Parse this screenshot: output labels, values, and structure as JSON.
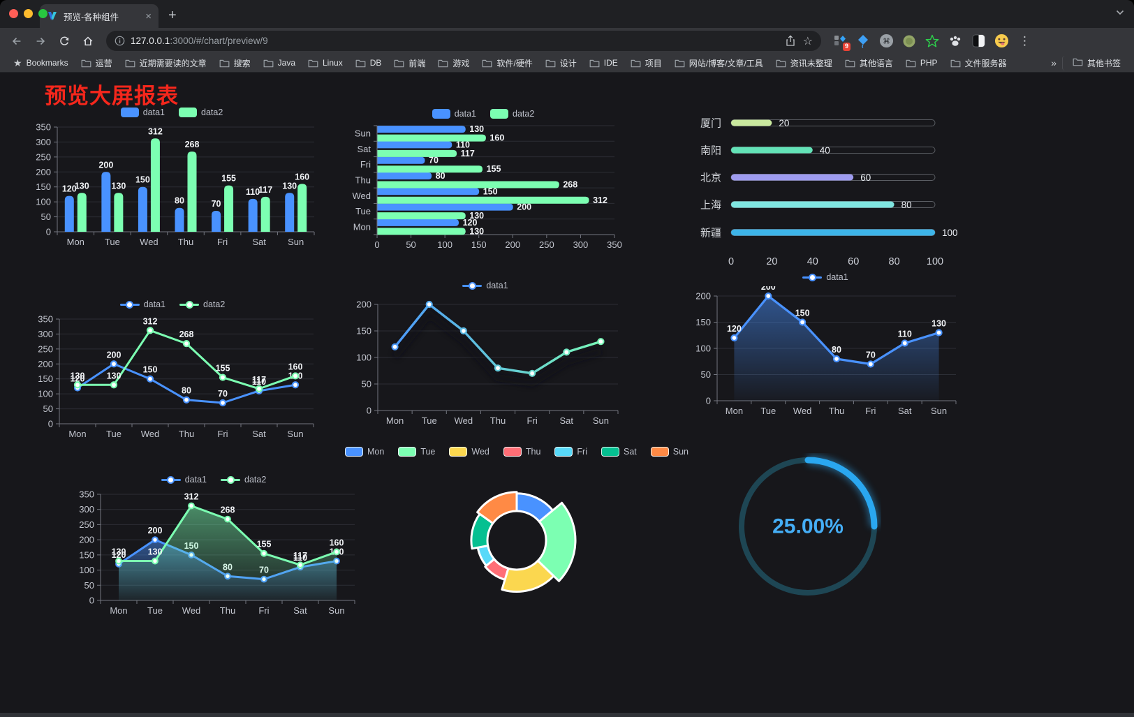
{
  "browser": {
    "tab": {
      "title": "预览-各种组件"
    },
    "icons": {
      "close": "×",
      "new_tab": "+",
      "menu_dots": "⋮",
      "star": "☆"
    },
    "url": {
      "host": "127.0.0.1",
      "rest": ":3000/#/chart/preview/9"
    },
    "extensions_badge": "9",
    "bookmarks": {
      "label": "Bookmarks",
      "folders": [
        "运营",
        "近期需要读的文章",
        "搜索",
        "Java",
        "Linux",
        "DB",
        "前端",
        "游戏",
        "软件/硬件",
        "设计",
        "IDE",
        "项目",
        "网站/博客/文章/工具",
        "资讯未整理",
        "其他语言",
        "PHP",
        "文件服务器"
      ],
      "overflow": "»",
      "other_label": "其他书签"
    }
  },
  "page": {
    "title": "预览大屏报表"
  },
  "chart_data": [
    {
      "id": "bar-vertical",
      "type": "bar",
      "categories": [
        "Mon",
        "Tue",
        "Wed",
        "Thu",
        "Fri",
        "Sat",
        "Sun"
      ],
      "series": [
        {
          "name": "data1",
          "color": "#4992ff",
          "values": [
            120,
            200,
            150,
            80,
            70,
            110,
            130
          ]
        },
        {
          "name": "data2",
          "color": "#7cffb2",
          "values": [
            130,
            130,
            312,
            268,
            155,
            117,
            160
          ]
        }
      ],
      "ylim": [
        0,
        350
      ],
      "yticks": [
        0,
        50,
        100,
        150,
        200,
        250,
        300,
        350
      ],
      "labels": true,
      "legend_position": "top",
      "grid": true
    },
    {
      "id": "bar-horizontal",
      "type": "bar-horizontal",
      "categories": [
        "Mon",
        "Tue",
        "Wed",
        "Thu",
        "Fri",
        "Sat",
        "Sun"
      ],
      "series": [
        {
          "name": "data1",
          "color": "#4992ff",
          "values": [
            120,
            200,
            150,
            80,
            70,
            110,
            130
          ]
        },
        {
          "name": "data2",
          "color": "#7cffb2",
          "values": [
            130,
            130,
            312,
            268,
            155,
            117,
            160
          ]
        }
      ],
      "xlim": [
        0,
        350
      ],
      "xticks": [
        0,
        50,
        100,
        150,
        200,
        250,
        300,
        350
      ],
      "labels": true,
      "legend_position": "top",
      "grid": true
    },
    {
      "id": "progress-bars",
      "type": "progress",
      "xlim": [
        0,
        100
      ],
      "xticks": [
        0,
        20,
        40,
        60,
        80,
        100
      ],
      "items": [
        {
          "label": "厦门",
          "value": 20,
          "color": "#c9e89e"
        },
        {
          "label": "南阳",
          "value": 40,
          "color": "#63e2b7"
        },
        {
          "label": "北京",
          "value": 60,
          "color": "#9e9bef"
        },
        {
          "label": "上海",
          "value": 80,
          "color": "#7fe5e0"
        },
        {
          "label": "新疆",
          "value": 100,
          "color": "#3db4e8"
        }
      ]
    },
    {
      "id": "line-basic",
      "type": "line",
      "categories": [
        "Mon",
        "Tue",
        "Wed",
        "Thu",
        "Fri",
        "Sat",
        "Sun"
      ],
      "series": [
        {
          "name": "data1",
          "color": "#4992ff",
          "values": [
            120,
            200,
            150,
            80,
            70,
            110,
            130
          ]
        },
        {
          "name": "data2",
          "color": "#7cffb2",
          "values": [
            130,
            130,
            312,
            268,
            155,
            117,
            160
          ]
        }
      ],
      "ylim": [
        0,
        350
      ],
      "yticks": [
        0,
        50,
        100,
        150,
        200,
        250,
        300,
        350
      ],
      "labels": true,
      "legend_position": "top",
      "grid": true
    },
    {
      "id": "line-gradient",
      "type": "line-gradient",
      "categories": [
        "Mon",
        "Tue",
        "Wed",
        "Thu",
        "Fri",
        "Sat",
        "Sun"
      ],
      "series": [
        {
          "name": "data1",
          "colors": [
            "#4992ff",
            "#7cffb2"
          ],
          "values": [
            120,
            200,
            150,
            80,
            70,
            110,
            130
          ]
        }
      ],
      "ylim": [
        0,
        200
      ],
      "yticks": [
        0,
        50,
        100,
        150,
        200
      ],
      "labels": false,
      "legend_position": "top",
      "grid": true
    },
    {
      "id": "area-single",
      "type": "area",
      "categories": [
        "Mon",
        "Tue",
        "Wed",
        "Thu",
        "Fri",
        "Sat",
        "Sun"
      ],
      "series": [
        {
          "name": "data1",
          "color": "#4992ff",
          "values": [
            120,
            200,
            150,
            80,
            70,
            110,
            130
          ]
        }
      ],
      "ylim": [
        0,
        200
      ],
      "yticks": [
        0,
        50,
        100,
        150,
        200
      ],
      "labels": true,
      "legend_position": "top",
      "grid": true
    },
    {
      "id": "line-area",
      "type": "line-area",
      "categories": [
        "Mon",
        "Tue",
        "Wed",
        "Thu",
        "Fri",
        "Sat",
        "Sun"
      ],
      "series": [
        {
          "name": "data1",
          "color": "#4992ff",
          "values": [
            120,
            200,
            150,
            80,
            70,
            110,
            130
          ]
        },
        {
          "name": "data2",
          "color": "#7cffb2",
          "values": [
            130,
            130,
            312,
            268,
            155,
            117,
            160
          ]
        }
      ],
      "ylim": [
        0,
        350
      ],
      "yticks": [
        0,
        50,
        100,
        150,
        200,
        250,
        300,
        350
      ],
      "labels": true,
      "legend_position": "top",
      "grid": true
    },
    {
      "id": "rose-pie",
      "type": "pie",
      "items": [
        {
          "label": "Mon",
          "value": 120,
          "color": "#4992ff"
        },
        {
          "label": "Tue",
          "value": 200,
          "color": "#7cffb2"
        },
        {
          "label": "Wed",
          "value": 150,
          "color": "#fbd74f"
        },
        {
          "label": "Thu",
          "value": 80,
          "color": "#ff6e76"
        },
        {
          "label": "Fri",
          "value": 70,
          "color": "#58d9f9"
        },
        {
          "label": "Sat",
          "value": 110,
          "color": "#05c091"
        },
        {
          "label": "Sun",
          "value": 130,
          "color": "#ff8a45"
        }
      ],
      "legend_position": "top",
      "style": "rose-donut"
    },
    {
      "id": "ring-progress",
      "type": "gauge",
      "value": 25,
      "value_label": "25.00%",
      "color": "#2aa7f0",
      "track_color": "#1e4654",
      "text_color": "#45aef6"
    }
  ]
}
